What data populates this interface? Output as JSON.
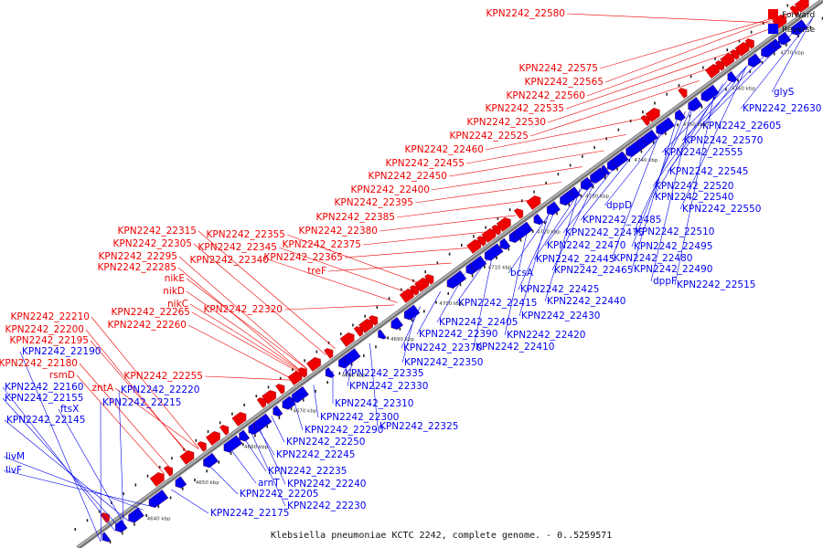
{
  "footer_text": "Klebsiella pneumoniae KCTC 2242, complete genome. - 0..5259571",
  "legend": {
    "forward_label": "Forward",
    "reverse_label": "Reverse",
    "forward_color": "#ee0000",
    "reverse_color": "#0000ee"
  },
  "colors": {
    "forward": "#ee0000",
    "reverse": "#0000ee",
    "backbone": "#888888"
  },
  "ticks": [
    "4640 kbp",
    "4650 kbp",
    "4660 kbp",
    "4670 kbp",
    "4680 kbp",
    "4690 kbp",
    "4700 kbp",
    "4710 kbp",
    "4720 kbp",
    "4730 kbp",
    "4740 kbp",
    "4750 kbp",
    "4760 kbp",
    "4770 kbp"
  ],
  "forward_labels": [
    "KPN2242_22580",
    "KPN2242_22575",
    "KPN2242_22565",
    "KPN2242_22560",
    "KPN2242_22535",
    "KPN2242_22530",
    "KPN2242_22525",
    "KPN2242_22460",
    "KPN2242_22455",
    "KPN2242_22450",
    "KPN2242_22400",
    "KPN2242_22395",
    "KPN2242_22385",
    "KPN2242_22380",
    "KPN2242_22375",
    "KPN2242_22365",
    "treF",
    "KPN2242_22355",
    "KPN2242_22345",
    "KPN2242_22340",
    "KPN2242_22315",
    "KPN2242_22305",
    "KPN2242_22295",
    "KPN2242_22285",
    "nikE",
    "nikD",
    "nikC",
    "KPN2242_22320",
    "KPN2242_22265",
    "KPN2242_22260",
    "KPN2242_22210",
    "KPN2242_22200",
    "KPN2242_22195",
    "KPN2242_22180",
    "rsmD",
    "zntA",
    "KPN2242_22255"
  ],
  "reverse_labels": [
    "glyS",
    "KPN2242_22630",
    "KPN2242_22605",
    "KPN2242_22570",
    "KPN2242_22555",
    "KPN2242_22545",
    "KPN2242_22520",
    "KPN2242_22540",
    "KPN2242_22550",
    "dppD",
    "KPN2242_22485",
    "KPN2242_22510",
    "KPN2242_22475",
    "KPN2242_22470",
    "KPN2242_22495",
    "KPN2242_22480",
    "KPN2242_22445",
    "KPN2242_22465",
    "KPN2242_22490",
    "dppF",
    "KPN2242_22515",
    "bcsA",
    "KPN2242_22425",
    "KPN2242_22440",
    "KPN2242_22415",
    "KPN2242_22430",
    "KPN2242_22405",
    "KPN2242_22420",
    "KPN2242_22390",
    "KPN2242_22410",
    "KPN2242_22370",
    "KPN2242_22350",
    "KPN2242_22190",
    "KPN2242_22160",
    "KPN2242_22155",
    "ftsX",
    "KPN2242_22145",
    "KPN2242_22220",
    "KPN2242_22215",
    "KPN2242_22335",
    "KPN2242_22330",
    "KPN2242_22310",
    "KPN2242_22300",
    "KPN2242_22290",
    "KPN2242_22325",
    "KPN2242_22250",
    "KPN2242_22245",
    "livM",
    "livF",
    "KPN2242_22235",
    "arnT",
    "KPN2242_22240",
    "KPN2242_22205",
    "KPN2242_22230",
    "KPN2242_22175"
  ]
}
